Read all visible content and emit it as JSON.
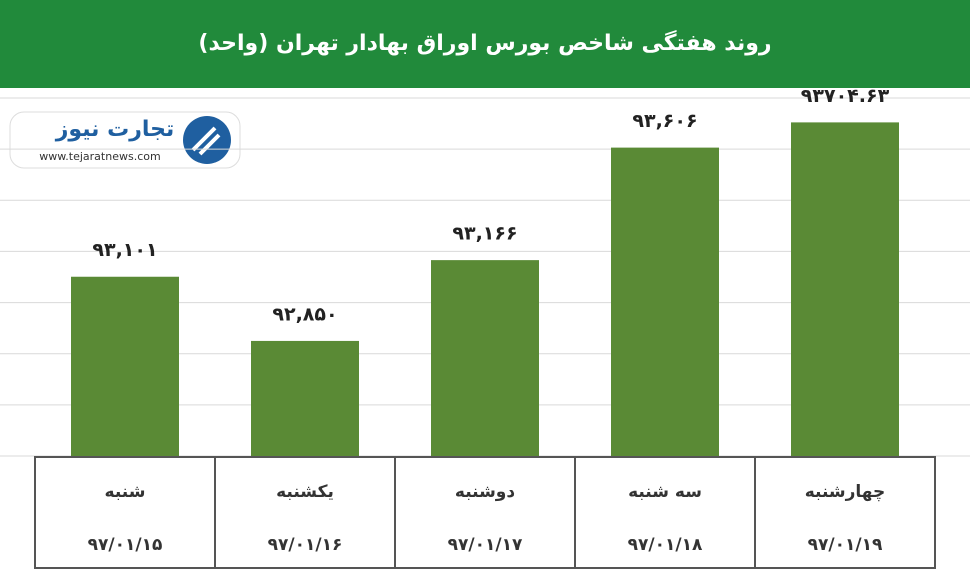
{
  "chart_data": {
    "type": "bar",
    "title": "روند هفتگی شاخص بورس اوراق بهادار تهران (واحد)",
    "logo": {
      "name": "تجارت نیوز",
      "url": "www.tejaratnews.com"
    },
    "categories": [
      "شنبه",
      "یکشنبه",
      "دوشنبه",
      "سه شنبه",
      "چهارشنبه"
    ],
    "dates": [
      "۹۷/۰۱/۱۵",
      "۹۷/۰۱/۱۶",
      "۹۷/۰۱/۱۷",
      "۹۷/۰۱/۱۸",
      "۹۷/۰۱/۱۹"
    ],
    "values": [
      93101,
      92850,
      93166,
      93606,
      93704.63
    ],
    "value_labels": [
      "۹۳,۱۰۱",
      "۹۲,۸۵۰",
      "۹۳,۱۶۶",
      "۹۳,۶۰۶",
      "۹۳۷۰۴.۶۳"
    ],
    "color": "#5a8a35",
    "ylim": [
      92400,
      93800
    ],
    "yticks": [
      92400,
      92600,
      92800,
      93000,
      93200,
      93400,
      93600,
      93800
    ],
    "grid": true
  }
}
